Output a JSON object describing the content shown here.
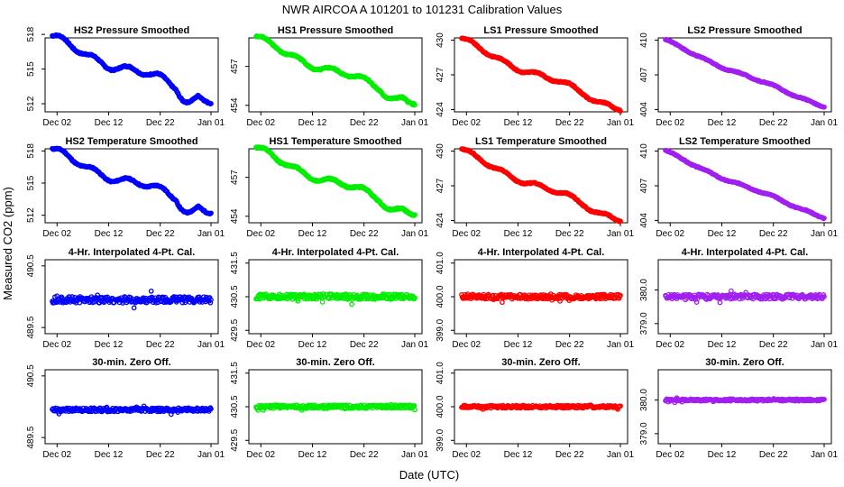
{
  "figure": {
    "title": "NWR   AIRCOA A   101201 to 101231   Calibration Values",
    "xlabel": "Date (UTC)",
    "ylabel": "Measured CO2 (ppm)"
  },
  "x_ticks": [
    "Dec 02",
    "Dec 12",
    "Dec 22",
    "Jan 01"
  ],
  "chart_data": [
    {
      "type": "scatter",
      "title": "HS2 Pressure Smoothed",
      "ylim": [
        511.3,
        517.7
      ],
      "yticks": [
        "512",
        "515",
        "518"
      ],
      "color": "#0000ff",
      "shape": "trend",
      "start": 517.6,
      "end": 512.5,
      "wiggle": 0.55,
      "jitter": 0.12,
      "dip": 0.9
    },
    {
      "type": "scatter",
      "title": "HS1 Pressure Smoothed",
      "ylim": [
        453.5,
        459.2
      ],
      "yticks": [
        "454",
        "457"
      ],
      "color": "#00ee00",
      "shape": "trend",
      "start": 459.1,
      "end": 454.4,
      "wiggle": 0.4,
      "jitter": 0.12,
      "dip": 0.4
    },
    {
      "type": "scatter",
      "title": "LS1 Pressure Smoothed",
      "ylim": [
        423.8,
        430.2
      ],
      "yticks": [
        "424",
        "427",
        "430"
      ],
      "color": "#ff0000",
      "shape": "trend",
      "start": 430.0,
      "end": 424.2,
      "wiggle": 0.35,
      "jitter": 0.1,
      "dip": 0.2
    },
    {
      "type": "scatter",
      "title": "LS2 Pressure Smoothed",
      "ylim": [
        403.8,
        410.2
      ],
      "yticks": [
        "404",
        "407",
        "410"
      ],
      "color": "#a020f0",
      "shape": "trend",
      "start": 410.0,
      "end": 404.3,
      "wiggle": 0.15,
      "jitter": 0.08,
      "dip": 0.0
    },
    {
      "type": "scatter",
      "title": "HS2 Temperature Smoothed",
      "ylim": [
        511.3,
        518.2
      ],
      "yticks": [
        "512",
        "515",
        "518"
      ],
      "color": "#0000ff",
      "shape": "trend",
      "start": 517.9,
      "end": 512.6,
      "wiggle": 0.55,
      "jitter": 0.12,
      "dip": 0.9
    },
    {
      "type": "scatter",
      "title": "HS1 Temperature Smoothed",
      "ylim": [
        453.5,
        459.2
      ],
      "yticks": [
        "454",
        "457"
      ],
      "color": "#00ee00",
      "shape": "trend",
      "start": 459.1,
      "end": 454.4,
      "wiggle": 0.4,
      "jitter": 0.12,
      "dip": 0.4
    },
    {
      "type": "scatter",
      "title": "LS1 Temperature Smoothed",
      "ylim": [
        423.8,
        430.2
      ],
      "yticks": [
        "424",
        "427",
        "430"
      ],
      "color": "#ff0000",
      "shape": "trend",
      "start": 430.0,
      "end": 424.2,
      "wiggle": 0.35,
      "jitter": 0.1,
      "dip": 0.2
    },
    {
      "type": "scatter",
      "title": "LS2 Temperature Smoothed",
      "ylim": [
        403.8,
        410.2
      ],
      "yticks": [
        "404",
        "407",
        "410"
      ],
      "color": "#a020f0",
      "shape": "trend",
      "start": 410.0,
      "end": 404.3,
      "wiggle": 0.15,
      "jitter": 0.08,
      "dip": 0.0
    },
    {
      "type": "scatter",
      "title": "4-Hr. Interpolated 4-Pt. Cal.",
      "ylim": [
        489.4,
        490.6
      ],
      "yticks": [
        "489.5",
        "490.5"
      ],
      "color": "#0000ff",
      "shape": "flat",
      "level": 489.95,
      "noise": 0.05
    },
    {
      "type": "scatter",
      "title": "4-Hr. Interpolated 4-Pt. Cal.",
      "ylim": [
        429.4,
        431.6
      ],
      "yticks": [
        "429.5",
        "430.5",
        "431.5"
      ],
      "color": "#00ee00",
      "shape": "flat",
      "level": 430.5,
      "noise": 0.08
    },
    {
      "type": "scatter",
      "title": "4-Hr. Interpolated 4-Pt. Cal.",
      "ylim": [
        398.9,
        401.1
      ],
      "yticks": [
        "399.0",
        "400.0",
        "401.0"
      ],
      "color": "#ff0000",
      "shape": "flat",
      "level": 400.0,
      "noise": 0.07
    },
    {
      "type": "scatter",
      "title": "4-Hr. Interpolated 4-Pt. Cal.",
      "ylim": [
        378.7,
        380.9
      ],
      "yticks": [
        "379.0",
        "380.0"
      ],
      "color": "#a020f0",
      "shape": "flat",
      "level": 379.8,
      "noise": 0.07
    },
    {
      "type": "scatter",
      "title": "30-min. Zero Off.",
      "ylim": [
        489.4,
        490.6
      ],
      "yticks": [
        "489.5",
        "490.5"
      ],
      "color": "#0000ff",
      "shape": "flat",
      "level": 489.95,
      "noise": 0.03
    },
    {
      "type": "scatter",
      "title": "30-min. Zero Off.",
      "ylim": [
        429.4,
        431.6
      ],
      "yticks": [
        "429.5",
        "430.5",
        "431.5"
      ],
      "color": "#00ee00",
      "shape": "flat",
      "level": 430.5,
      "noise": 0.05
    },
    {
      "type": "scatter",
      "title": "30-min. Zero Off.",
      "ylim": [
        398.9,
        401.1
      ],
      "yticks": [
        "399.0",
        "400.0",
        "401.0"
      ],
      "color": "#ff0000",
      "shape": "flat",
      "level": 400.0,
      "noise": 0.04
    },
    {
      "type": "scatter",
      "title": "30-min. Zero Off.",
      "ylim": [
        378.7,
        380.9
      ],
      "yticks": [
        "379.0",
        "380.0"
      ],
      "color": "#a020f0",
      "shape": "flat",
      "level": 380.0,
      "noise": 0.03
    }
  ]
}
